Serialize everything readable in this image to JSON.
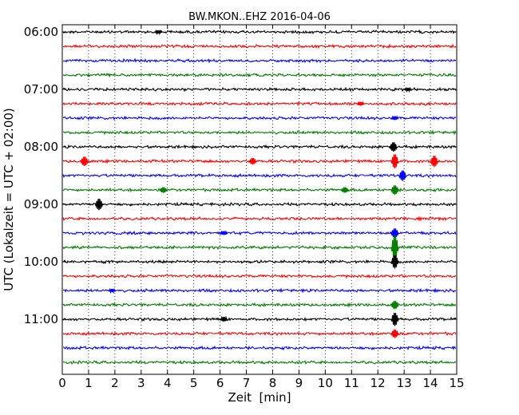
{
  "chart_data": {
    "type": "line",
    "title": "BW.MKON..EHZ 2016-04-06",
    "xlabel": "Zeit  [min]",
    "ylabel": "UTC (Lokalzeit = UTC + 02:00)",
    "xlim": [
      0,
      15
    ],
    "x_ticks": [
      "0",
      "1",
      "2",
      "3",
      "4",
      "5",
      "6",
      "7",
      "8",
      "9",
      "10",
      "11",
      "12",
      "13",
      "14",
      "15"
    ],
    "y_ticks": [
      "06:00",
      "07:00",
      "08:00",
      "09:00",
      "10:00",
      "11:00"
    ],
    "grid": true,
    "colors": [
      "#000000",
      "#ff0000",
      "#0000ff",
      "#008000"
    ],
    "series": [
      {
        "label": "06:00",
        "color": "#000000"
      },
      {
        "label": "06:15",
        "color": "#ff0000"
      },
      {
        "label": "06:30",
        "color": "#0000ff"
      },
      {
        "label": "06:45",
        "color": "#008000"
      },
      {
        "label": "07:00",
        "color": "#000000"
      },
      {
        "label": "07:15",
        "color": "#ff0000"
      },
      {
        "label": "07:30",
        "color": "#0000ff"
      },
      {
        "label": "07:45",
        "color": "#008000"
      },
      {
        "label": "08:00",
        "color": "#000000"
      },
      {
        "label": "08:15",
        "color": "#ff0000"
      },
      {
        "label": "08:30",
        "color": "#0000ff"
      },
      {
        "label": "08:45",
        "color": "#008000"
      },
      {
        "label": "09:00",
        "color": "#000000"
      },
      {
        "label": "09:15",
        "color": "#ff0000"
      },
      {
        "label": "09:30",
        "color": "#0000ff"
      },
      {
        "label": "09:45",
        "color": "#008000"
      },
      {
        "label": "10:00",
        "color": "#000000"
      },
      {
        "label": "10:15",
        "color": "#ff0000"
      },
      {
        "label": "10:30",
        "color": "#0000ff"
      },
      {
        "label": "10:45",
        "color": "#008000"
      },
      {
        "label": "11:00",
        "color": "#000000"
      },
      {
        "label": "11:15",
        "color": "#ff0000"
      },
      {
        "label": "11:30",
        "color": "#0000ff"
      },
      {
        "label": "11:45",
        "color": "#008000"
      }
    ],
    "events": [
      {
        "trace": 0,
        "x": 3.6,
        "amp": 0.35
      },
      {
        "trace": 4,
        "x": 13.1,
        "amp": 0.35
      },
      {
        "trace": 5,
        "x": 11.3,
        "amp": 0.4
      },
      {
        "trace": 6,
        "x": 12.6,
        "amp": 0.4
      },
      {
        "trace": 8,
        "x": 12.55,
        "amp": 1.0
      },
      {
        "trace": 9,
        "x": 0.8,
        "amp": 1.0
      },
      {
        "trace": 9,
        "x": 7.2,
        "amp": 0.7
      },
      {
        "trace": 9,
        "x": 14.1,
        "amp": 1.2
      },
      {
        "trace": 9,
        "x": 12.6,
        "amp": 1.5
      },
      {
        "trace": 10,
        "x": 12.9,
        "amp": 1.1
      },
      {
        "trace": 11,
        "x": 3.8,
        "amp": 0.6
      },
      {
        "trace": 11,
        "x": 10.7,
        "amp": 0.6
      },
      {
        "trace": 11,
        "x": 12.6,
        "amp": 1.0
      },
      {
        "trace": 12,
        "x": 1.35,
        "amp": 1.2
      },
      {
        "trace": 14,
        "x": 6.1,
        "amp": 0.4
      },
      {
        "trace": 14,
        "x": 12.6,
        "amp": 1.0
      },
      {
        "trace": 15,
        "x": 12.6,
        "amp": 2.6
      },
      {
        "trace": 16,
        "x": 12.6,
        "amp": 1.4
      },
      {
        "trace": 18,
        "x": 1.85,
        "amp": 0.35
      },
      {
        "trace": 19,
        "x": 12.6,
        "amp": 0.9
      },
      {
        "trace": 20,
        "x": 6.1,
        "amp": 0.5
      },
      {
        "trace": 20,
        "x": 12.6,
        "amp": 1.4
      },
      {
        "trace": 21,
        "x": 12.6,
        "amp": 0.9
      }
    ]
  }
}
